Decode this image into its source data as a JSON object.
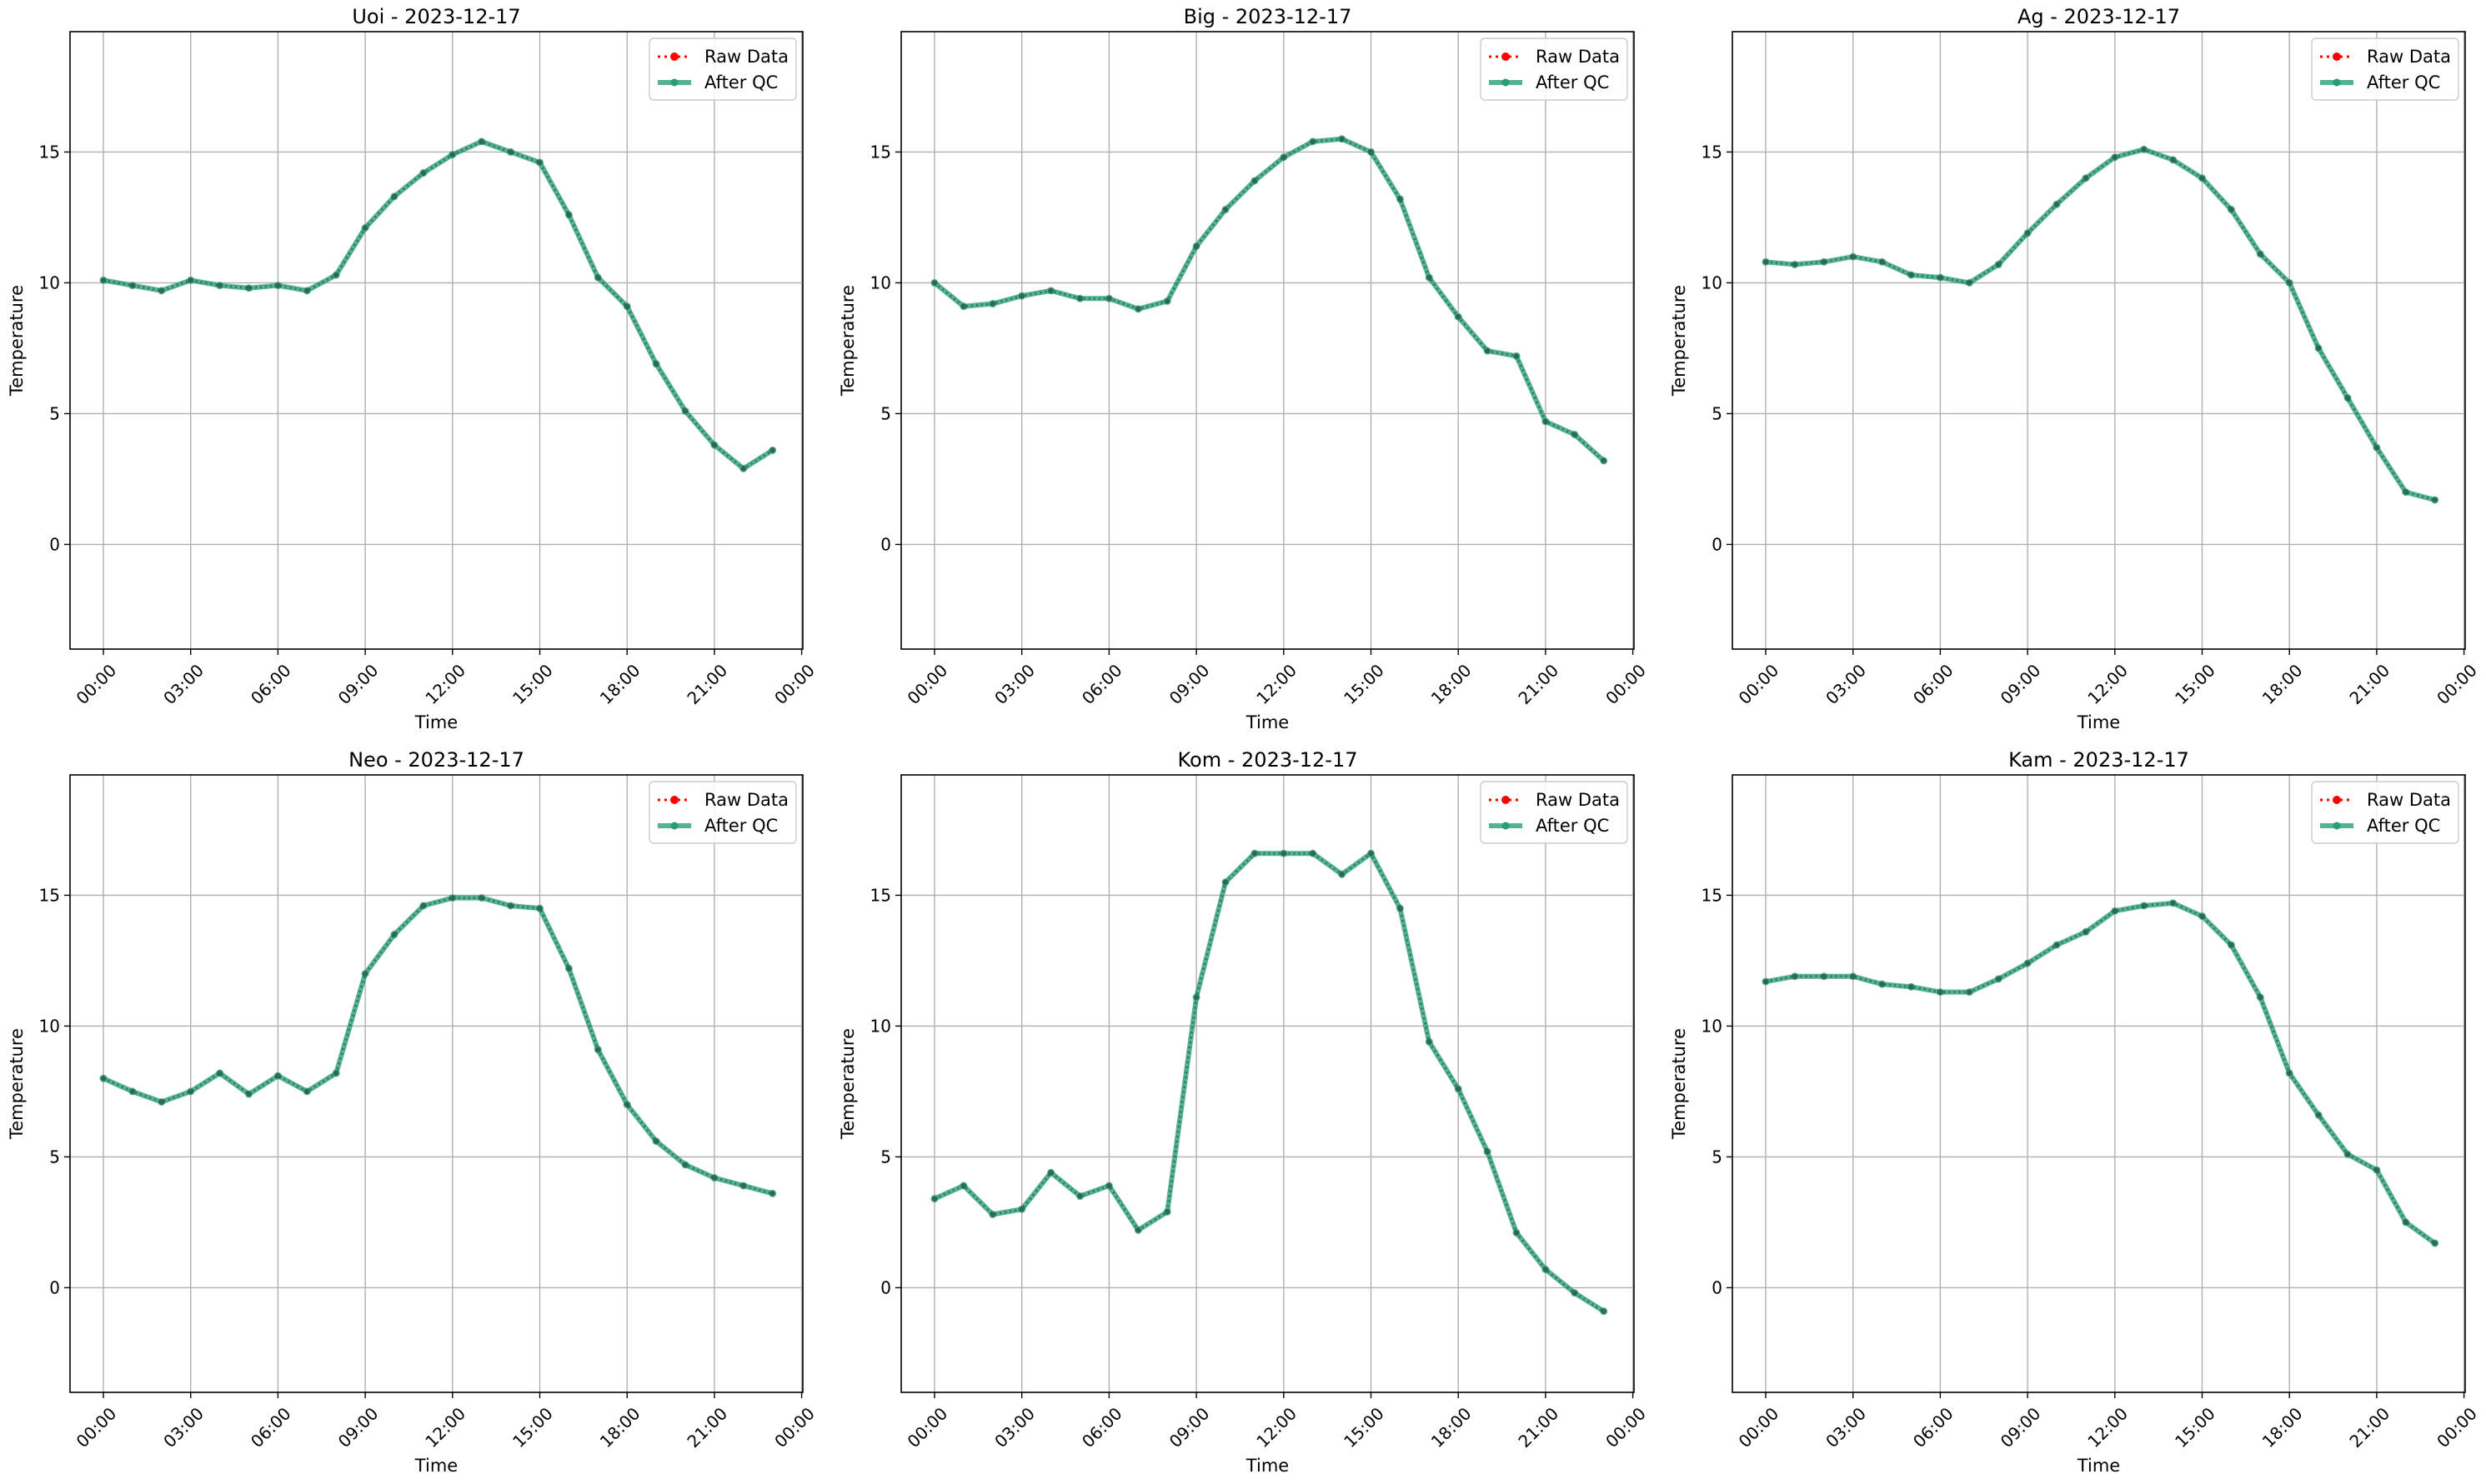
{
  "chart_data": [
    {
      "type": "line",
      "title": "Uoi - 2023-12-17",
      "xlabel": "Time",
      "ylabel": "Temperature",
      "x": [
        "00:00",
        "01:00",
        "02:00",
        "03:00",
        "04:00",
        "05:00",
        "06:00",
        "07:00",
        "08:00",
        "09:00",
        "10:00",
        "11:00",
        "12:00",
        "13:00",
        "14:00",
        "15:00",
        "16:00",
        "17:00",
        "18:00",
        "19:00",
        "20:00",
        "21:00",
        "22:00",
        "23:00"
      ],
      "xticks": [
        "00:00",
        "03:00",
        "06:00",
        "09:00",
        "12:00",
        "15:00",
        "18:00",
        "21:00",
        "00:00"
      ],
      "yticks": [
        "0",
        "5",
        "10",
        "15"
      ],
      "ylim": [
        -4,
        19.6
      ],
      "grid": true,
      "legend": "top-right",
      "series": [
        {
          "name": "Raw Data",
          "color": "#ff0000",
          "values": [
            10.1,
            9.9,
            9.7,
            10.1,
            9.9,
            9.8,
            9.9,
            9.7,
            10.3,
            12.1,
            13.3,
            14.2,
            14.9,
            15.4,
            15.0,
            14.6,
            12.6,
            10.2,
            9.1,
            6.9,
            5.1,
            3.8,
            2.9,
            3.6
          ]
        },
        {
          "name": "After QC",
          "color": "#2a9d78",
          "values": [
            10.1,
            9.9,
            9.7,
            10.1,
            9.9,
            9.8,
            9.9,
            9.7,
            10.3,
            12.1,
            13.3,
            14.2,
            14.9,
            15.4,
            15.0,
            14.6,
            12.6,
            10.2,
            9.1,
            6.9,
            5.1,
            3.8,
            2.9,
            3.6
          ]
        }
      ]
    },
    {
      "type": "line",
      "title": "Big - 2023-12-17",
      "xlabel": "Time",
      "ylabel": "Temperature",
      "x": [
        "00:00",
        "01:00",
        "02:00",
        "03:00",
        "04:00",
        "05:00",
        "06:00",
        "07:00",
        "08:00",
        "09:00",
        "10:00",
        "11:00",
        "12:00",
        "13:00",
        "14:00",
        "15:00",
        "16:00",
        "17:00",
        "18:00",
        "19:00",
        "20:00",
        "21:00",
        "22:00",
        "23:00"
      ],
      "xticks": [
        "00:00",
        "03:00",
        "06:00",
        "09:00",
        "12:00",
        "15:00",
        "18:00",
        "21:00",
        "00:00"
      ],
      "yticks": [
        "0",
        "5",
        "10",
        "15"
      ],
      "ylim": [
        -4,
        19.6
      ],
      "grid": true,
      "legend": "top-right",
      "series": [
        {
          "name": "Raw Data",
          "color": "#ff0000",
          "values": [
            10.0,
            9.1,
            9.2,
            9.5,
            9.7,
            9.4,
            9.4,
            9.0,
            9.3,
            11.4,
            12.8,
            13.9,
            14.8,
            15.4,
            15.5,
            15.0,
            13.2,
            10.2,
            8.7,
            7.4,
            7.2,
            4.7,
            4.2,
            3.2
          ]
        },
        {
          "name": "After QC",
          "color": "#2a9d78",
          "values": [
            10.0,
            9.1,
            9.2,
            9.5,
            9.7,
            9.4,
            9.4,
            9.0,
            9.3,
            11.4,
            12.8,
            13.9,
            14.8,
            15.4,
            15.5,
            15.0,
            13.2,
            10.2,
            8.7,
            7.4,
            7.2,
            4.7,
            4.2,
            3.2
          ]
        }
      ]
    },
    {
      "type": "line",
      "title": "Ag - 2023-12-17",
      "xlabel": "Time",
      "ylabel": "Temperature",
      "x": [
        "00:00",
        "01:00",
        "02:00",
        "03:00",
        "04:00",
        "05:00",
        "06:00",
        "07:00",
        "08:00",
        "09:00",
        "10:00",
        "11:00",
        "12:00",
        "13:00",
        "14:00",
        "15:00",
        "16:00",
        "17:00",
        "18:00",
        "19:00",
        "20:00",
        "21:00",
        "22:00",
        "23:00"
      ],
      "xticks": [
        "00:00",
        "03:00",
        "06:00",
        "09:00",
        "12:00",
        "15:00",
        "18:00",
        "21:00",
        "00:00"
      ],
      "yticks": [
        "0",
        "5",
        "10",
        "15"
      ],
      "ylim": [
        -4,
        19.6
      ],
      "grid": true,
      "legend": "top-right",
      "series": [
        {
          "name": "Raw Data",
          "color": "#ff0000",
          "values": [
            10.8,
            10.7,
            10.8,
            11.0,
            10.8,
            10.3,
            10.2,
            10.0,
            10.7,
            11.9,
            13.0,
            14.0,
            14.8,
            15.1,
            14.7,
            14.0,
            12.8,
            11.1,
            10.0,
            7.5,
            5.6,
            3.7,
            2.0,
            1.7
          ]
        },
        {
          "name": "After QC",
          "color": "#2a9d78",
          "values": [
            10.8,
            10.7,
            10.8,
            11.0,
            10.8,
            10.3,
            10.2,
            10.0,
            10.7,
            11.9,
            13.0,
            14.0,
            14.8,
            15.1,
            14.7,
            14.0,
            12.8,
            11.1,
            10.0,
            7.5,
            5.6,
            3.7,
            2.0,
            1.7
          ]
        }
      ]
    },
    {
      "type": "line",
      "title": "Neo - 2023-12-17",
      "xlabel": "Time",
      "ylabel": "Temperature",
      "x": [
        "00:00",
        "01:00",
        "02:00",
        "03:00",
        "04:00",
        "05:00",
        "06:00",
        "07:00",
        "08:00",
        "09:00",
        "10:00",
        "11:00",
        "12:00",
        "13:00",
        "14:00",
        "15:00",
        "16:00",
        "17:00",
        "18:00",
        "19:00",
        "20:00",
        "21:00",
        "22:00",
        "23:00"
      ],
      "xticks": [
        "00:00",
        "03:00",
        "06:00",
        "09:00",
        "12:00",
        "15:00",
        "18:00",
        "21:00",
        "00:00"
      ],
      "yticks": [
        "0",
        "5",
        "10",
        "15"
      ],
      "ylim": [
        -4,
        19.6
      ],
      "grid": true,
      "legend": "top-right",
      "series": [
        {
          "name": "Raw Data",
          "color": "#ff0000",
          "values": [
            8.0,
            7.5,
            7.1,
            7.5,
            8.2,
            7.4,
            8.1,
            7.5,
            8.2,
            12.0,
            13.5,
            14.6,
            14.9,
            14.9,
            14.6,
            14.5,
            12.2,
            9.1,
            7.0,
            5.6,
            4.7,
            4.2,
            3.9,
            3.6
          ]
        },
        {
          "name": "After QC",
          "color": "#2a9d78",
          "values": [
            8.0,
            7.5,
            7.1,
            7.5,
            8.2,
            7.4,
            8.1,
            7.5,
            8.2,
            12.0,
            13.5,
            14.6,
            14.9,
            14.9,
            14.6,
            14.5,
            12.2,
            9.1,
            7.0,
            5.6,
            4.7,
            4.2,
            3.9,
            3.6
          ]
        }
      ]
    },
    {
      "type": "line",
      "title": "Kom - 2023-12-17",
      "xlabel": "Time",
      "ylabel": "Temperature",
      "x": [
        "00:00",
        "01:00",
        "02:00",
        "03:00",
        "04:00",
        "05:00",
        "06:00",
        "07:00",
        "08:00",
        "09:00",
        "10:00",
        "11:00",
        "12:00",
        "13:00",
        "14:00",
        "15:00",
        "16:00",
        "17:00",
        "18:00",
        "19:00",
        "20:00",
        "21:00",
        "22:00",
        "23:00"
      ],
      "xticks": [
        "00:00",
        "03:00",
        "06:00",
        "09:00",
        "12:00",
        "15:00",
        "18:00",
        "21:00",
        "00:00"
      ],
      "yticks": [
        "0",
        "5",
        "10",
        "15"
      ],
      "ylim": [
        -4,
        19.6
      ],
      "grid": true,
      "legend": "top-right",
      "series": [
        {
          "name": "Raw Data",
          "color": "#ff0000",
          "values": [
            3.4,
            3.9,
            2.8,
            3.0,
            4.4,
            3.5,
            3.9,
            2.2,
            2.9,
            11.1,
            15.5,
            16.6,
            16.6,
            16.6,
            15.8,
            16.6,
            14.5,
            9.4,
            7.6,
            5.2,
            2.1,
            0.7,
            -0.2,
            -0.9
          ]
        },
        {
          "name": "After QC",
          "color": "#2a9d78",
          "values": [
            3.4,
            3.9,
            2.8,
            3.0,
            4.4,
            3.5,
            3.9,
            2.2,
            2.9,
            11.1,
            15.5,
            16.6,
            16.6,
            16.6,
            15.8,
            16.6,
            14.5,
            9.4,
            7.6,
            5.2,
            2.1,
            0.7,
            -0.2,
            -0.9
          ]
        }
      ]
    },
    {
      "type": "line",
      "title": "Kam - 2023-12-17",
      "xlabel": "Time",
      "ylabel": "Temperature",
      "x": [
        "00:00",
        "01:00",
        "02:00",
        "03:00",
        "04:00",
        "05:00",
        "06:00",
        "07:00",
        "08:00",
        "09:00",
        "10:00",
        "11:00",
        "12:00",
        "13:00",
        "14:00",
        "15:00",
        "16:00",
        "17:00",
        "18:00",
        "19:00",
        "20:00",
        "21:00",
        "22:00",
        "23:00"
      ],
      "xticks": [
        "00:00",
        "03:00",
        "06:00",
        "09:00",
        "12:00",
        "15:00",
        "18:00",
        "21:00",
        "00:00"
      ],
      "yticks": [
        "0",
        "5",
        "10",
        "15"
      ],
      "ylim": [
        -4,
        19.6
      ],
      "grid": true,
      "legend": "top-right",
      "series": [
        {
          "name": "Raw Data",
          "color": "#ff0000",
          "values": [
            11.7,
            11.9,
            11.9,
            11.9,
            11.6,
            11.5,
            11.3,
            11.3,
            11.8,
            12.4,
            13.1,
            13.6,
            14.4,
            14.6,
            14.7,
            14.2,
            13.1,
            11.1,
            8.2,
            6.6,
            5.1,
            4.5,
            2.5,
            1.7
          ]
        },
        {
          "name": "After QC",
          "color": "#2a9d78",
          "values": [
            11.7,
            11.9,
            11.9,
            11.9,
            11.6,
            11.5,
            11.3,
            11.3,
            11.8,
            12.4,
            13.1,
            13.6,
            14.4,
            14.6,
            14.7,
            14.2,
            13.1,
            11.1,
            8.2,
            6.6,
            5.1,
            4.5,
            2.5,
            1.7
          ]
        }
      ]
    }
  ]
}
